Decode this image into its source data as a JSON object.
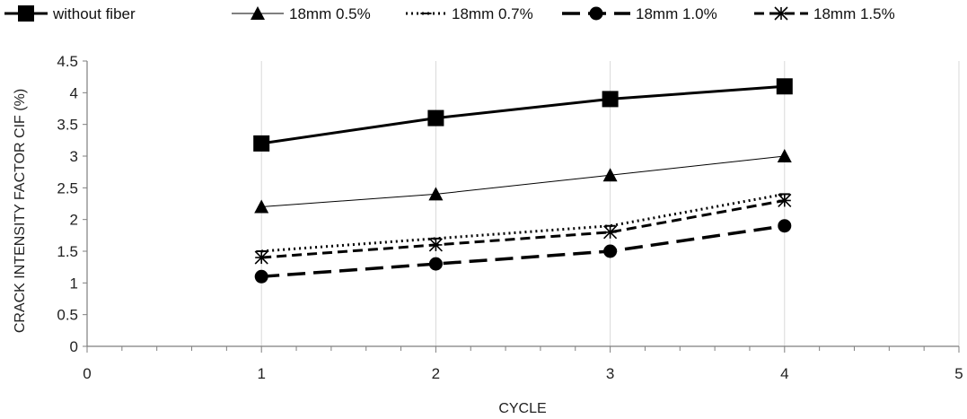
{
  "chart_data": {
    "type": "line",
    "xlabel": "CYCLE",
    "ylabel": "CRACK INTENSITY FACTOR  CIF (%)",
    "xlim": [
      0,
      5
    ],
    "ylim": [
      0,
      4.5
    ],
    "x_ticks": [
      0,
      1,
      2,
      3,
      4,
      5
    ],
    "y_ticks": [
      0,
      0.5,
      1,
      1.5,
      2,
      2.5,
      3,
      3.5,
      4,
      4.5
    ],
    "grid": "vertical major lines",
    "legend_position": "top",
    "series": [
      {
        "name": "without fiber",
        "x": [
          1,
          2,
          3,
          4
        ],
        "values": [
          3.2,
          3.6,
          3.9,
          4.1
        ],
        "color": "#000000",
        "line": "solid-thick",
        "marker": "square"
      },
      {
        "name": "18mm 0.5%",
        "x": [
          1,
          2,
          3,
          4
        ],
        "values": [
          2.2,
          2.4,
          2.7,
          3.0
        ],
        "color": "#000000",
        "line": "solid-thin",
        "marker": "triangle"
      },
      {
        "name": "18mm 0.7%",
        "x": [
          1,
          2,
          3,
          4
        ],
        "values": [
          1.5,
          1.7,
          1.9,
          2.4
        ],
        "color": "#000000",
        "line": "dotted",
        "marker": "dash"
      },
      {
        "name": "18mm 1.0%",
        "x": [
          1,
          2,
          3,
          4
        ],
        "values": [
          1.1,
          1.3,
          1.5,
          1.9
        ],
        "color": "#000000",
        "line": "long-dash",
        "marker": "circle"
      },
      {
        "name": "18mm 1.5%",
        "x": [
          1,
          2,
          3,
          4
        ],
        "values": [
          1.4,
          1.6,
          1.8,
          2.3
        ],
        "color": "#000000",
        "line": "dash",
        "marker": "asterisk"
      }
    ]
  }
}
